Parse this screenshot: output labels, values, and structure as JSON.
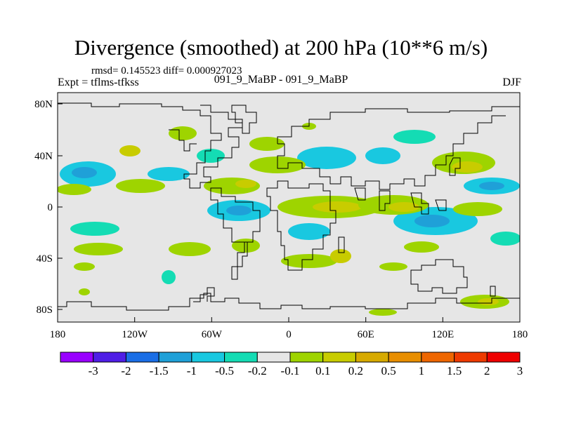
{
  "title": "Divergence (smoothed) at 200 hPa (10**6 m/s)",
  "stats": "rmsd= 0.145523 diff= 0.000927023",
  "left_subtitle": "Expt = tflms-tfkss",
  "center_subtitle": "091_9_MaBP - 091_9_MaBP",
  "right_subtitle": "DJF",
  "map": {
    "x_ticks": [
      "180",
      "120W",
      "60W",
      "0",
      "60E",
      "120E",
      "180"
    ],
    "y_ticks": [
      "80N",
      "40N",
      "0",
      "40S",
      "80S"
    ],
    "background_color": "#e6e6e6"
  },
  "colorbar": {
    "colors": [
      "#9900ff",
      "#4f1ee6",
      "#1a6ee6",
      "#1fa0d8",
      "#19c8e0",
      "#14dcb4",
      "#e6e6e6",
      "#9ed400",
      "#c8cc00",
      "#d7aa00",
      "#e88e00",
      "#ee6600",
      "#ee3a00",
      "#ee0000"
    ],
    "labels": [
      "-3",
      "-2",
      "-1.5",
      "-1",
      "-0.5",
      "-0.2",
      "-0.1",
      "0.1",
      "0.2",
      "0.5",
      "1",
      "1.5",
      "2",
      "3"
    ]
  },
  "field_colors": {
    "neg_strong": "#1fa0d8",
    "neg_mid": "#19c8e0",
    "neg_weak": "#14dcb4",
    "pos_weak": "#9ed400",
    "pos_mid": "#c8cc00",
    "pos_strong": "#d7aa00"
  }
}
